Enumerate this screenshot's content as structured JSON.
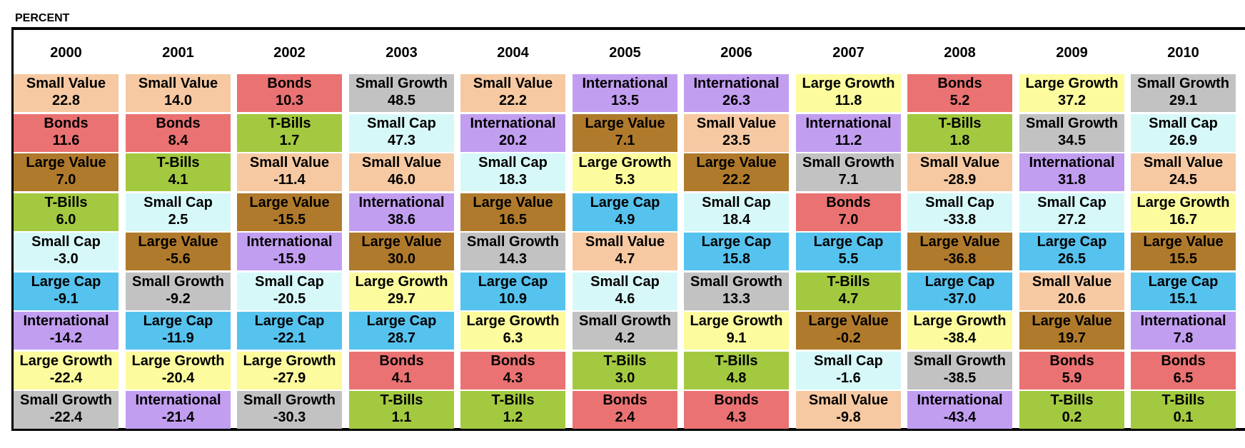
{
  "unit_label": "PERCENT",
  "colors": {
    "Small Value": "#f6c9a2",
    "Bonds": "#ea7272",
    "Large Value": "#b07a2c",
    "T-Bills": "#a3c940",
    "Small Cap": "#d7f8f8",
    "Large Cap": "#56c3ef",
    "International": "#c29ef0",
    "Large Growth": "#fcfb9d",
    "Small Growth": "#c2c2c2"
  },
  "chart_data": {
    "type": "table",
    "title": "",
    "years": [
      "2000",
      "2001",
      "2002",
      "2003",
      "2004",
      "2005",
      "2006",
      "2007",
      "2008",
      "2009",
      "2010"
    ],
    "columns": [
      [
        [
          "Small Value",
          "22.8"
        ],
        [
          "Bonds",
          "11.6"
        ],
        [
          "Large Value",
          "7.0"
        ],
        [
          "T-Bills",
          "6.0"
        ],
        [
          "Small Cap",
          "-3.0"
        ],
        [
          "Large Cap",
          "-9.1"
        ],
        [
          "International",
          "-14.2"
        ],
        [
          "Large Growth",
          "-22.4"
        ],
        [
          "Small Growth",
          "-22.4"
        ]
      ],
      [
        [
          "Small Value",
          "14.0"
        ],
        [
          "Bonds",
          "8.4"
        ],
        [
          "T-Bills",
          "4.1"
        ],
        [
          "Small Cap",
          "2.5"
        ],
        [
          "Large Value",
          "-5.6"
        ],
        [
          "Small Growth",
          "-9.2"
        ],
        [
          "Large Cap",
          "-11.9"
        ],
        [
          "Large Growth",
          "-20.4"
        ],
        [
          "International",
          "-21.4"
        ]
      ],
      [
        [
          "Bonds",
          "10.3"
        ],
        [
          "T-Bills",
          "1.7"
        ],
        [
          "Small Value",
          "-11.4"
        ],
        [
          "Large Value",
          "-15.5"
        ],
        [
          "International",
          "-15.9"
        ],
        [
          "Small Cap",
          "-20.5"
        ],
        [
          "Large Cap",
          "-22.1"
        ],
        [
          "Large Growth",
          "-27.9"
        ],
        [
          "Small Growth",
          "-30.3"
        ]
      ],
      [
        [
          "Small Growth",
          "48.5"
        ],
        [
          "Small Cap",
          "47.3"
        ],
        [
          "Small Value",
          "46.0"
        ],
        [
          "International",
          "38.6"
        ],
        [
          "Large Value",
          "30.0"
        ],
        [
          "Large Growth",
          "29.7"
        ],
        [
          "Large Cap",
          "28.7"
        ],
        [
          "Bonds",
          "4.1"
        ],
        [
          "T-Bills",
          "1.1"
        ]
      ],
      [
        [
          "Small Value",
          "22.2"
        ],
        [
          "International",
          "20.2"
        ],
        [
          "Small Cap",
          "18.3"
        ],
        [
          "Large Value",
          "16.5"
        ],
        [
          "Small Growth",
          "14.3"
        ],
        [
          "Large Cap",
          "10.9"
        ],
        [
          "Large Growth",
          "6.3"
        ],
        [
          "Bonds",
          "4.3"
        ],
        [
          "T-Bills",
          "1.2"
        ]
      ],
      [
        [
          "International",
          "13.5"
        ],
        [
          "Large Value",
          "7.1"
        ],
        [
          "Large Growth",
          "5.3"
        ],
        [
          "Large Cap",
          "4.9"
        ],
        [
          "Small Value",
          "4.7"
        ],
        [
          "Small Cap",
          "4.6"
        ],
        [
          "Small Growth",
          "4.2"
        ],
        [
          "T-Bills",
          "3.0"
        ],
        [
          "Bonds",
          "2.4"
        ]
      ],
      [
        [
          "International",
          "26.3"
        ],
        [
          "Small Value",
          "23.5"
        ],
        [
          "Large Value",
          "22.2"
        ],
        [
          "Small Cap",
          "18.4"
        ],
        [
          "Large Cap",
          "15.8"
        ],
        [
          "Small Growth",
          "13.3"
        ],
        [
          "Large Growth",
          "9.1"
        ],
        [
          "T-Bills",
          "4.8"
        ],
        [
          "Bonds",
          "4.3"
        ]
      ],
      [
        [
          "Large Growth",
          "11.8"
        ],
        [
          "International",
          "11.2"
        ],
        [
          "Small Growth",
          "7.1"
        ],
        [
          "Bonds",
          "7.0"
        ],
        [
          "Large Cap",
          "5.5"
        ],
        [
          "T-Bills",
          "4.7"
        ],
        [
          "Large Value",
          "-0.2"
        ],
        [
          "Small Cap",
          "-1.6"
        ],
        [
          "Small Value",
          "-9.8"
        ]
      ],
      [
        [
          "Bonds",
          "5.2"
        ],
        [
          "T-Bills",
          "1.8"
        ],
        [
          "Small Value",
          "-28.9"
        ],
        [
          "Small Cap",
          "-33.8"
        ],
        [
          "Large Value",
          "-36.8"
        ],
        [
          "Large Cap",
          "-37.0"
        ],
        [
          "Large Growth",
          "-38.4"
        ],
        [
          "Small Growth",
          "-38.5"
        ],
        [
          "International",
          "-43.4"
        ]
      ],
      [
        [
          "Large Growth",
          "37.2"
        ],
        [
          "Small Growth",
          "34.5"
        ],
        [
          "International",
          "31.8"
        ],
        [
          "Small Cap",
          "27.2"
        ],
        [
          "Large Cap",
          "26.5"
        ],
        [
          "Small Value",
          "20.6"
        ],
        [
          "Large Value",
          "19.7"
        ],
        [
          "Bonds",
          "5.9"
        ],
        [
          "T-Bills",
          "0.2"
        ]
      ],
      [
        [
          "Small Growth",
          "29.1"
        ],
        [
          "Small Cap",
          "26.9"
        ],
        [
          "Small Value",
          "24.5"
        ],
        [
          "Large Growth",
          "16.7"
        ],
        [
          "Large Value",
          "15.5"
        ],
        [
          "Large Cap",
          "15.1"
        ],
        [
          "International",
          "7.8"
        ],
        [
          "Bonds",
          "6.5"
        ],
        [
          "T-Bills",
          "0.1"
        ]
      ]
    ]
  }
}
